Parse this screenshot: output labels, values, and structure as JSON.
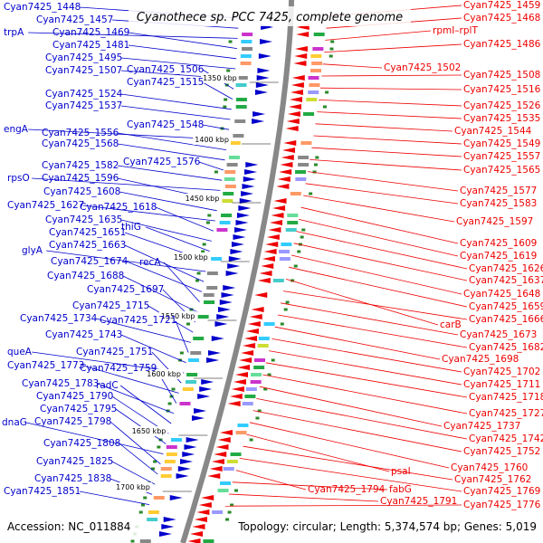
{
  "title": "Cyanothece sp. PCC 7425, complete genome",
  "accession": "Accession: NC_011884",
  "summary": "Topology: circular; Length: 5,374,574 bp; Genes: 5,019",
  "colors": {
    "forward": "#0000cc",
    "reverse": "#ee0000",
    "backbone": "#888888"
  },
  "ticks": [
    "1350 kbp",
    "1400 kbp",
    "1450 kbp",
    "1500 kbp",
    "1550 kbp",
    "1600 kbp",
    "1650 kbp",
    "1700 kbp"
  ],
  "left_labels": [
    "Cyan7425_1448",
    "Cyan7425_1457",
    "trpA",
    "Cyan7425_1469",
    "Cyan7425_1481",
    "Cyan7425_1495",
    "Cyan7425_1507",
    "Cyan7425_1506",
    "Cyan7425_1515",
    "Cyan7425_1524",
    "Cyan7425_1537",
    "Cyan7425_1548",
    "engA",
    "Cyan7425_1556",
    "Cyan7425_1568",
    "Cyan7425_1576",
    "Cyan7425_1582",
    "rpsO",
    "Cyan7425_1596",
    "Cyan7425_1608",
    "Cyan7425_1627",
    "Cyan7425_1618",
    "Cyan7425_1635",
    "thiG",
    "Cyan7425_1651",
    "glyA",
    "Cyan7425_1663",
    "Cyan7425_1674",
    "recA",
    "Cyan7425_1688",
    "Cyan7425_1697",
    "Cyan7425_1715",
    "Cyan7425_1734",
    "Cyan7425_1721",
    "Cyan7425_1743",
    "queA",
    "Cyan7425_1751",
    "Cyan7425_1773",
    "Cyan7425_1759",
    "Cyan7425_1783",
    "radC",
    "Cyan7425_1790",
    "Cyan7425_1795",
    "dnaG",
    "Cyan7425_1798",
    "Cyan7425_1808",
    "Cyan7425_1825",
    "Cyan7425_1838",
    "Cyan7425_1851"
  ],
  "right_labels": [
    "Cyan7425_1459",
    "Cyan7425_1468",
    "rpmI–rplT",
    "Cyan7425_1486",
    "Cyan7425_1502",
    "Cyan7425_1508",
    "Cyan7425_1516",
    "Cyan7425_1526",
    "Cyan7425_1535",
    "Cyan7425_1544",
    "Cyan7425_1549",
    "Cyan7425_1557",
    "Cyan7425_1565",
    "Cyan7425_1577",
    "Cyan7425_1583",
    "Cyan7425_1597",
    "Cyan7425_1609",
    "Cyan7425_1619",
    "Cyan7425_1626",
    "Cyan7425_1637",
    "Cyan7425_1648",
    "Cyan7425_1659",
    "carB",
    "Cyan7425_1666",
    "Cyan7425_1673",
    "Cyan7425_1682",
    "Cyan7425_1698",
    "Cyan7425_1702",
    "Cyan7425_1711",
    "Cyan7425_1718",
    "Cyan7425_1727",
    "Cyan7425_1737",
    "Cyan7425_1742",
    "Cyan7425_1752",
    "Cyan7425_1760",
    "psaI",
    "Cyan7425_1762",
    "Cyan7425_1769",
    "Cyan7425_1794",
    "fabG",
    "Cyan7425_1791",
    "Cyan7425_1776"
  ]
}
